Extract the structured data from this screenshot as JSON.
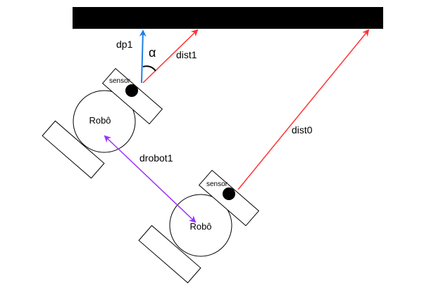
{
  "labels": {
    "dp1": "dp1",
    "alpha": "α",
    "dist1": "dist1",
    "dist0": "dist0",
    "drobot1": "drobot1"
  },
  "robots": [
    {
      "body_label": "Robô",
      "sensor_label": "sensor"
    },
    {
      "body_label": "Robô",
      "sensor_label": "sensor"
    }
  ],
  "colors": {
    "wall": "#000000",
    "dist": "#ff3333",
    "dp": "#1e7fe6",
    "drobot": "#9933ff",
    "outline": "#000000"
  }
}
